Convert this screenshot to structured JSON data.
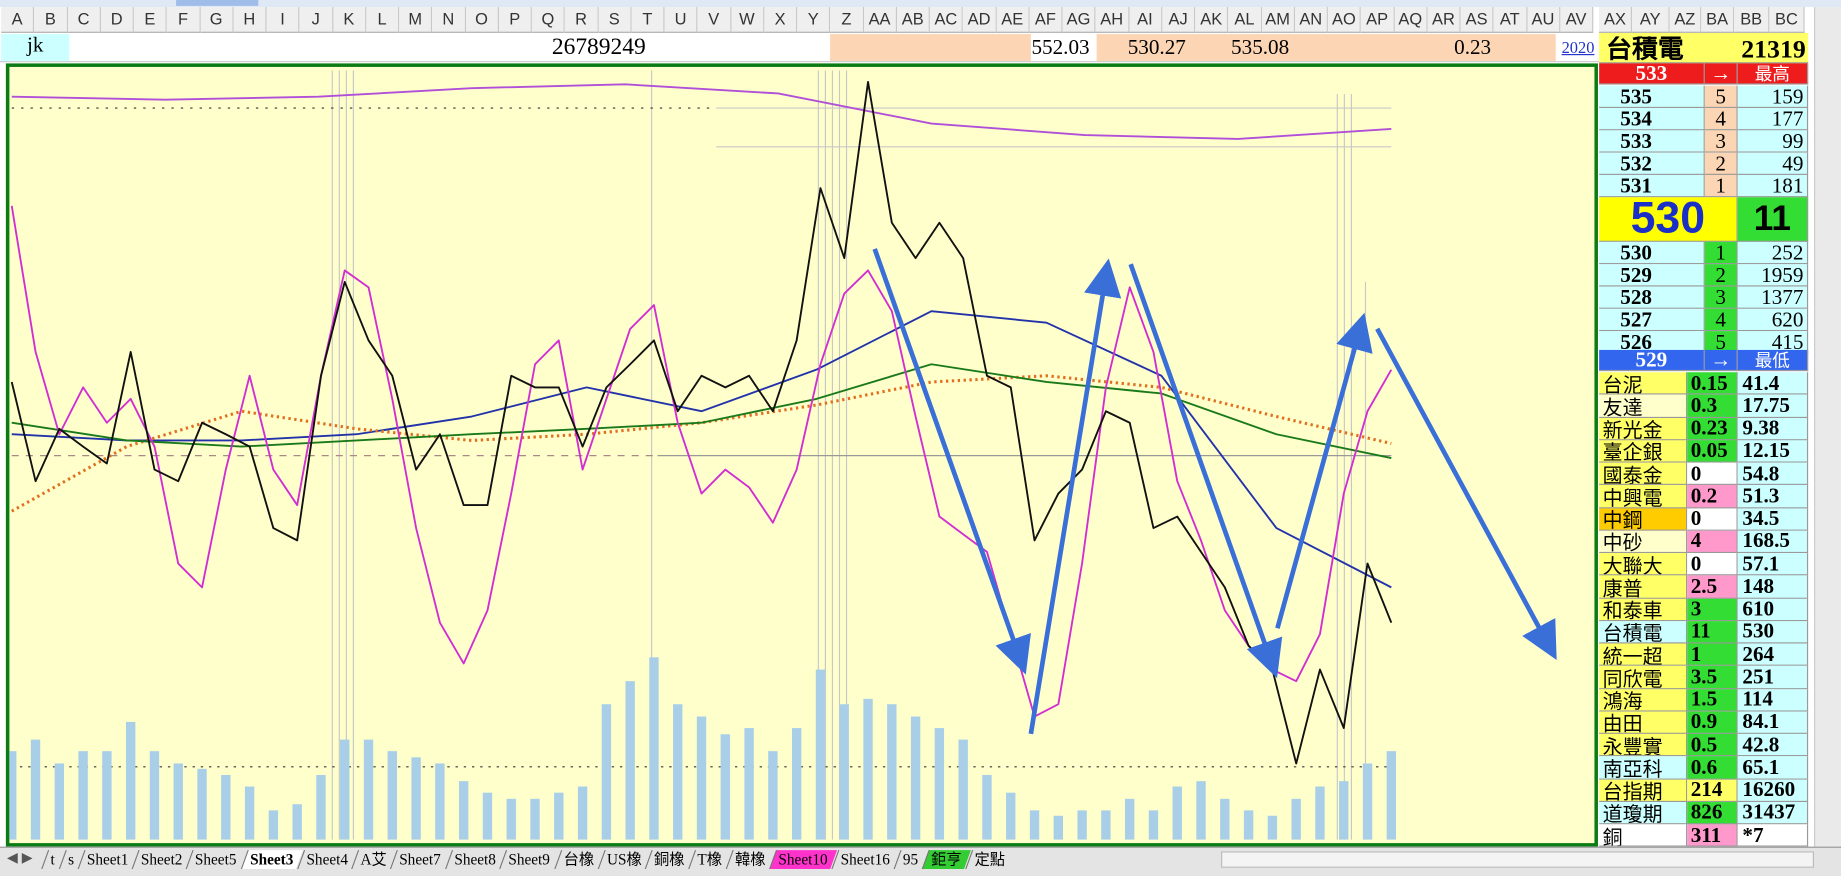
{
  "columns": [
    "A",
    "B",
    "C",
    "D",
    "E",
    "F",
    "G",
    "H",
    "I",
    "J",
    "K",
    "L",
    "M",
    "N",
    "O",
    "P",
    "Q",
    "R",
    "S",
    "T",
    "U",
    "V",
    "W",
    "X",
    "Y",
    "Z",
    "AA",
    "AB",
    "AC",
    "AD",
    "AE",
    "AF",
    "AG",
    "AH",
    "AI",
    "AJ",
    "AK",
    "AL",
    "AM",
    "AN",
    "AO",
    "AP",
    "AQ",
    "AR",
    "AS",
    "AT",
    "AU",
    "AV",
    "AX",
    "AY",
    "AZ",
    "BA",
    "BB",
    "BC"
  ],
  "row1": {
    "name": "jk",
    "total": 26789249,
    "prices": [
      552.03,
      530.27,
      535.08
    ],
    "change": 0.23,
    "date": 2020
  },
  "quote": {
    "name": "台積電",
    "volume": 21319,
    "high_row": {
      "price": 533,
      "arrow": "→",
      "label": "最高"
    },
    "asks": [
      {
        "price": 535,
        "level": 5,
        "qty": 159
      },
      {
        "price": 534,
        "level": 4,
        "qty": 177
      },
      {
        "price": 533,
        "level": 3,
        "qty": 99
      },
      {
        "price": 532,
        "level": 2,
        "qty": 49
      },
      {
        "price": 531,
        "level": 1,
        "qty": 181
      }
    ],
    "last": 530,
    "change": 11,
    "bids": [
      {
        "price": 530,
        "level": 1,
        "qty": 252
      },
      {
        "price": 529,
        "level": 2,
        "qty": 1959
      },
      {
        "price": 528,
        "level": 3,
        "qty": 1377
      },
      {
        "price": 527,
        "level": 4,
        "qty": 620
      },
      {
        "price": 526,
        "level": 5,
        "qty": 415
      }
    ],
    "low_row": {
      "price": 529,
      "arrow": "→",
      "label": "最低"
    }
  },
  "watchlist": [
    {
      "name": "台泥",
      "change": 0.15,
      "price": 41.4,
      "name_color": "#ffff66",
      "change_color": "#33dd33"
    },
    {
      "name": "友達",
      "change": 0.3,
      "price": 17.75,
      "name_color": "#ffffcc",
      "change_color": "#33dd33"
    },
    {
      "name": "新光金",
      "change": 0.23,
      "price": 9.38,
      "name_color": "#ffff66",
      "change_color": "#33dd33"
    },
    {
      "name": "臺企銀",
      "change": 0.05,
      "price": 12.15,
      "name_color": "#ffff66",
      "change_color": "#33dd33"
    },
    {
      "name": "國泰金",
      "change": 0,
      "price": 54.8,
      "name_color": "#ffff66",
      "change_color": "#ffffff"
    },
    {
      "name": "中興電",
      "change": 0.2,
      "price": 51.3,
      "name_color": "#ffff66",
      "change_color": "#ff99cc"
    },
    {
      "name": "中鋼",
      "change": 0,
      "price": 34.5,
      "name_color": "#ffcc00",
      "change_color": "#ffffff"
    },
    {
      "name": "中砂",
      "change": 4,
      "price": 168.5,
      "name_color": "#ffffcc",
      "change_color": "#ff99cc"
    },
    {
      "name": "大聯大",
      "change": 0,
      "price": 57.1,
      "name_color": "#ffff66",
      "change_color": "#ffffff"
    },
    {
      "name": "康普",
      "change": 2.5,
      "price": 148,
      "name_color": "#ffff66",
      "change_color": "#ff99cc"
    },
    {
      "name": "和泰車",
      "change": 3,
      "price": 610,
      "name_color": "#ffff66",
      "change_color": "#33dd33"
    },
    {
      "name": "台積電",
      "change": 11,
      "price": 530,
      "name_color": "#ccffff",
      "change_color": "#33dd33"
    },
    {
      "name": "統一超",
      "change": 1,
      "price": 264,
      "name_color": "#ffff66",
      "change_color": "#33dd33"
    },
    {
      "name": "同欣電",
      "change": 3.5,
      "price": 251,
      "name_color": "#ffff66",
      "change_color": "#33dd33"
    },
    {
      "name": "鴻海",
      "change": 1.5,
      "price": 114,
      "name_color": "#ffff66",
      "change_color": "#33dd33"
    },
    {
      "name": "由田",
      "change": 0.9,
      "price": 84.1,
      "name_color": "#ffff66",
      "change_color": "#33dd33"
    },
    {
      "name": "永豐實",
      "change": 0.5,
      "price": 42.8,
      "name_color": "#ffff66",
      "change_color": "#33dd33"
    },
    {
      "name": "南亞科",
      "change": 0.6,
      "price": 65.1,
      "name_color": "#ccffff",
      "change_color": "#33dd33"
    },
    {
      "name": "台指期",
      "change": 214,
      "price": 16260,
      "name_color": "#ffff66",
      "change_color": "#ffff66"
    },
    {
      "name": "道瓊期",
      "change": 826,
      "price": 31437,
      "name_color": "#ccffff",
      "change_color": "#33dd33"
    },
    {
      "name": "銅",
      "change": 311,
      "price": "*7",
      "name_color": "#ffffff",
      "change_color": "#ff99cc"
    }
  ],
  "tabs": [
    {
      "label": "t"
    },
    {
      "label": "s"
    },
    {
      "label": "Sheet1"
    },
    {
      "label": "Sheet2"
    },
    {
      "label": "Sheet5"
    },
    {
      "label": "Sheet3",
      "active": true
    },
    {
      "label": "Sheet4"
    },
    {
      "label": "A艾"
    },
    {
      "label": "Sheet7"
    },
    {
      "label": "Sheet8"
    },
    {
      "label": "Sheet9"
    },
    {
      "label": "台橡"
    },
    {
      "label": "US橡"
    },
    {
      "label": "銅橡"
    },
    {
      "label": "T橡"
    },
    {
      "label": "韓橡"
    },
    {
      "label": "Sheet10",
      "color": "#ff33cc"
    },
    {
      "label": "Sheet16"
    },
    {
      "label": "95"
    },
    {
      "label": "鉅亨",
      "color": "#33cc33"
    },
    {
      "label": "定點"
    }
  ],
  "chart": {
    "type": "line",
    "ylim": [
      0,
      100
    ],
    "volume": {
      "color": "#a9cfe8",
      "values": [
        11.5,
        13.0,
        9.9,
        11.5,
        11.5,
        15.3,
        11.5,
        9.9,
        9.2,
        8.4,
        6.9,
        3.8,
        4.6,
        8.4,
        13.0,
        13.0,
        11.5,
        10.7,
        9.9,
        7.6,
        6.1,
        5.3,
        5.3,
        6.1,
        6.9,
        17.6,
        20.6,
        23.7,
        17.6,
        16.0,
        13.7,
        14.5,
        11.5,
        14.5,
        22.1,
        17.6,
        18.3,
        17.6,
        16.0,
        14.5,
        13.0,
        8.4,
        6.1,
        3.8,
        3.1,
        3.8,
        3.8,
        5.3,
        3.8,
        6.9,
        7.6,
        5.3,
        3.8,
        3.1,
        5.3,
        6.9,
        7.6,
        9.9,
        11.5
      ]
    },
    "series": [
      {
        "color": "#b04fd8",
        "values": [
          96.6,
          96.2,
          96.6,
          97.7,
          98.2,
          97.0,
          93.1,
          91.6,
          91.1,
          92.4
        ]
      },
      {
        "color": "#2233aa",
        "values": [
          52.7,
          51.9,
          51.9,
          52.7,
          55.0,
          58.8,
          55.7,
          61.1,
          68.7,
          67.2,
          60.3,
          40.5,
          32.8
        ]
      },
      {
        "color": "#e07020",
        "dashed": true,
        "values": [
          42.7,
          51.1,
          55.7,
          53.4,
          51.9,
          52.7,
          54.2,
          56.5,
          59.5,
          60.3,
          58.8,
          55.0,
          51.5
        ]
      },
      {
        "color": "#1a7a1a",
        "values": [
          54.2,
          51.9,
          51.1,
          51.9,
          52.7,
          53.4,
          54.2,
          57.3,
          61.8,
          59.5,
          58.0,
          52.7,
          49.6
        ]
      },
      {
        "color": "#d22fd2",
        "values": [
          82.4,
          63.4,
          52.7,
          58.8,
          54.2,
          57.3,
          51.1,
          35.9,
          32.8,
          48.1,
          60.3,
          48.1,
          43.5,
          60.3,
          74.0,
          71.8,
          57.3,
          40.5,
          28.2,
          22.9,
          29.8,
          45.0,
          61.8,
          64.9,
          48.1,
          57.3,
          66.4,
          69.5,
          54.2,
          45.0,
          48.1,
          45.8,
          41.2,
          48.1,
          61.8,
          71.0,
          74.0,
          68.7,
          55.0,
          42.0,
          39.7,
          37.4,
          26.7,
          16.0,
          17.6,
          35.9,
          58.8,
          71.8,
          63.4,
          46.6,
          38.9,
          29.8,
          25.2,
          22.1,
          20.6,
          26.7,
          45.0,
          55.7,
          61.1
        ]
      },
      {
        "color": "#111111",
        "values": [
          59.5,
          46.6,
          53.4,
          51.1,
          48.9,
          63.4,
          48.1,
          46.6,
          54.2,
          52.7,
          51.1,
          40.5,
          38.9,
          60.3,
          72.5,
          64.9,
          60.3,
          48.1,
          52.7,
          43.5,
          43.5,
          60.3,
          58.8,
          58.8,
          51.1,
          58.8,
          61.8,
          64.9,
          55.7,
          60.3,
          58.8,
          60.3,
          55.7,
          64.9,
          84.7,
          75.6,
          98.5,
          80.2,
          75.6,
          80.2,
          75.6,
          60.3,
          58.8,
          38.9,
          45.0,
          48.1,
          55.7,
          54.2,
          40.5,
          42.0,
          37.4,
          32.8,
          25.2,
          22.1,
          9.9,
          22.1,
          14.5,
          35.9,
          28.2
        ]
      }
    ]
  }
}
